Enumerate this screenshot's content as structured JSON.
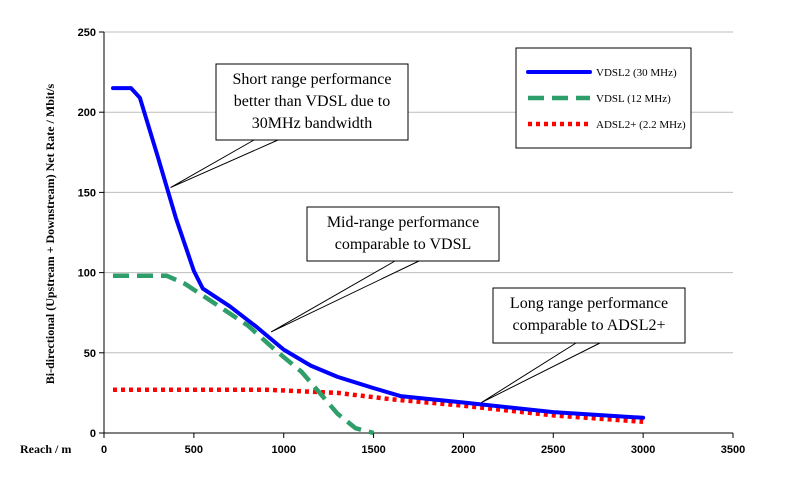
{
  "chart_data": {
    "type": "line",
    "title": "",
    "xlabel": "Reach / m",
    "ylabel": "Bi-directional (Upstream + Downstream) Net Rate / Mbit/s",
    "xlim": [
      0,
      3500
    ],
    "ylim": [
      0,
      250
    ],
    "xticks": [
      "0",
      "500",
      "1000",
      "1500",
      "2000",
      "2500",
      "3000",
      "3500"
    ],
    "yticks": [
      "0",
      "50",
      "100",
      "150",
      "200",
      "250"
    ],
    "grid": "horizontal",
    "legend_position": "top-right",
    "series": [
      {
        "name": "VDSL2 (30 MHz)",
        "color": "#0000ff",
        "style": "solid",
        "points": [
          [
            50,
            215
          ],
          [
            150,
            215
          ],
          [
            200,
            209
          ],
          [
            300,
            172
          ],
          [
            400,
            134
          ],
          [
            500,
            101
          ],
          [
            550,
            90
          ],
          [
            700,
            79
          ],
          [
            850,
            66
          ],
          [
            1000,
            52
          ],
          [
            1150,
            42
          ],
          [
            1300,
            35
          ],
          [
            1500,
            28
          ],
          [
            1650,
            23
          ],
          [
            2000,
            19
          ],
          [
            2500,
            13
          ],
          [
            3000,
            9.5
          ]
        ]
      },
      {
        "name": "VDSL (12 MHz)",
        "color": "#2e9e6a",
        "style": "dashed",
        "points": [
          [
            50,
            98
          ],
          [
            350,
            98
          ],
          [
            450,
            93
          ],
          [
            600,
            82
          ],
          [
            800,
            67
          ],
          [
            950,
            52
          ],
          [
            1100,
            38
          ],
          [
            1200,
            25
          ],
          [
            1300,
            12
          ],
          [
            1400,
            3
          ],
          [
            1500,
            0
          ]
        ]
      },
      {
        "name": "ADSL2+ (2.2 MHz)",
        "color": "#ff0000",
        "style": "dotted",
        "points": [
          [
            50,
            27
          ],
          [
            500,
            27
          ],
          [
            900,
            27
          ],
          [
            1100,
            26
          ],
          [
            1300,
            25
          ],
          [
            1600,
            21
          ],
          [
            2000,
            17
          ],
          [
            2500,
            11
          ],
          [
            3000,
            7
          ]
        ]
      }
    ],
    "annotations": [
      {
        "lines": [
          "Short range performance",
          "better than VDSL due to",
          "30MHz bandwidth"
        ]
      },
      {
        "lines": [
          "Mid-range performance",
          "comparable to VDSL"
        ]
      },
      {
        "lines": [
          "Long range performance",
          "comparable to ADSL2+"
        ]
      }
    ]
  }
}
